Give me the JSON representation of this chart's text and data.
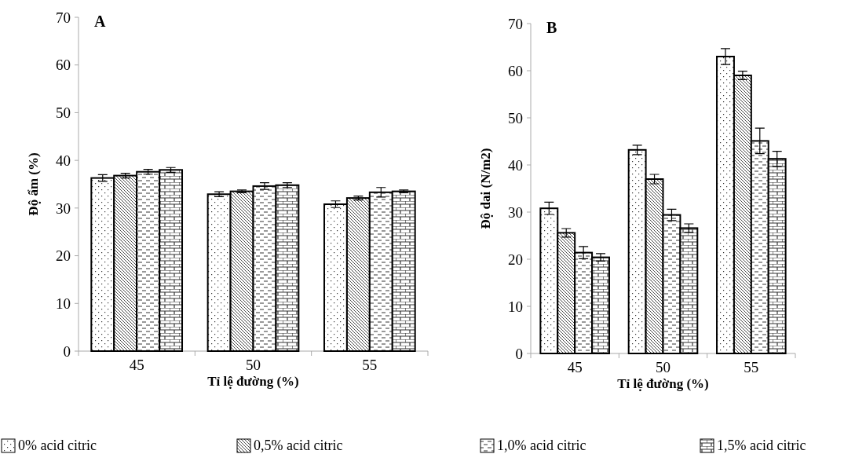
{
  "chart_data": [
    {
      "type": "bar",
      "title": "A",
      "xlabel": "Tỉ lệ đường (%)",
      "ylabel": "Độ ẩm (%)",
      "categories": [
        "45",
        "50",
        "55"
      ],
      "ylim": [
        0,
        70
      ],
      "yticks": [
        0,
        10,
        20,
        30,
        40,
        50,
        60,
        70
      ],
      "grid": false,
      "legend": "bottom",
      "series": [
        {
          "name": "0% acid citric",
          "color": "#000000",
          "values": [
            36.3,
            32.9,
            30.8
          ],
          "errors": [
            0.7,
            0.5,
            0.7
          ]
        },
        {
          "name": "0,5% acid citric",
          "color": "#000000",
          "values": [
            36.8,
            33.5,
            32.1
          ],
          "errors": [
            0.5,
            0.3,
            0.4
          ]
        },
        {
          "name": "1,0% acid citric",
          "color": "#000000",
          "values": [
            37.6,
            34.6,
            33.3
          ],
          "errors": [
            0.5,
            0.7,
            1.0
          ]
        },
        {
          "name": "1,5% acid citric",
          "color": "#000000",
          "values": [
            38.0,
            34.8,
            33.5
          ],
          "errors": [
            0.5,
            0.5,
            0.3
          ]
        }
      ]
    },
    {
      "type": "bar",
      "title": "B",
      "xlabel": "Tỉ lệ đường (%)",
      "ylabel": "Độ dai  (N/m2)",
      "categories": [
        "45",
        "50",
        "55"
      ],
      "ylim": [
        0,
        70
      ],
      "yticks": [
        0,
        10,
        20,
        30,
        40,
        50,
        60,
        70
      ],
      "grid": false,
      "series": [
        {
          "color": "#000000",
          "values": [
            30.8,
            43.2,
            63.0
          ],
          "errors": [
            1.3,
            1.0,
            1.7
          ]
        },
        {
          "color": "#000000",
          "values": [
            25.6,
            37.0,
            59.0
          ],
          "errors": [
            0.9,
            1.0,
            0.9
          ]
        },
        {
          "color": "#000000",
          "values": [
            21.4,
            29.4,
            45.1
          ],
          "errors": [
            1.3,
            1.2,
            2.7
          ]
        },
        {
          "color": "#000000",
          "values": [
            20.4,
            26.6,
            41.3
          ],
          "errors": [
            0.8,
            0.9,
            1.6
          ]
        }
      ]
    }
  ]
}
